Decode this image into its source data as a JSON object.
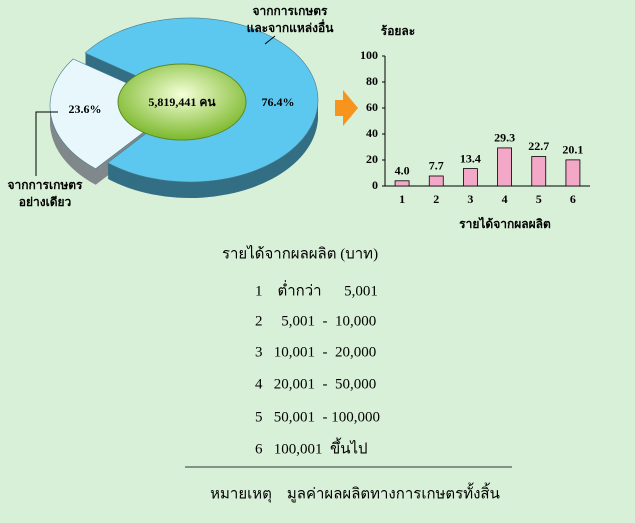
{
  "chart_data": [
    {
      "type": "pie",
      "center_label": "5,819,441 คน",
      "categories": [
        [
          "จากการเกษตร",
          "และจากแหล่งอื่น"
        ],
        [
          "จากการเกษตร",
          "อย่างเดียว"
        ]
      ],
      "values": [
        76.4,
        23.6
      ],
      "value_labels": [
        "76.4%",
        "23.6%"
      ],
      "colors": [
        "#5cc8f0",
        "#e8f7fc"
      ],
      "center_color": "#a8d848"
    },
    {
      "type": "bar",
      "ylabel": "ร้อยละ",
      "xlabel": "รายได้จากผลผลิต",
      "categories": [
        "1",
        "2",
        "3",
        "4",
        "5",
        "6"
      ],
      "values": [
        4.0,
        7.7,
        13.4,
        29.3,
        22.7,
        20.1
      ],
      "value_labels": [
        "4.0",
        "7.7",
        "13.4",
        "29.3",
        "22.7",
        "20.1"
      ],
      "color": "#f4a8c8",
      "ylim": [
        0,
        100
      ],
      "yticks": [
        0,
        20,
        40,
        60,
        80,
        100
      ]
    }
  ],
  "legend": {
    "title": "รายได้จากผลผลิต (บาท)",
    "rows": [
      "1    ต่ำกว่า      5,001",
      "2     5,001  -  10,000",
      "3   10,001  -  20,000",
      "4   20,001  -  50,000",
      "5   50,001  - 100,000",
      "6   100,001  ขึ้นไป"
    ],
    "note": "หมายเหตุ    มูลค่าผลผลิตทางการเกษตรทั้งสิ้น"
  }
}
